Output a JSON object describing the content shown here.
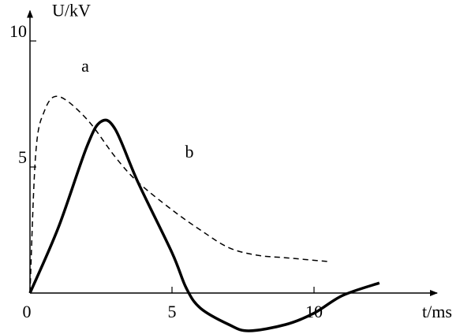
{
  "chart_data": {
    "type": "line",
    "x_label": "t/ms",
    "y_label": "U/kV",
    "annotations": [
      "a",
      "b"
    ],
    "xlim": [
      0,
      14
    ],
    "ylim": [
      -1.6,
      11.2
    ],
    "xticks": [
      0,
      5,
      10
    ],
    "yticks": [
      5,
      10
    ],
    "series": [
      {
        "name": "a",
        "color": "#000",
        "dashed": true,
        "x": [
          0,
          0.2,
          0.5,
          1,
          2,
          3,
          3.8,
          5,
          6,
          7,
          8,
          9,
          10.5
        ],
        "values": [
          0,
          5.5,
          7.2,
          7.8,
          6.9,
          5.4,
          4.4,
          3.3,
          2.5,
          1.8,
          1.5,
          1.4,
          1.25
        ]
      },
      {
        "name": "b",
        "color": "#000",
        "dashed": false,
        "x": [
          0,
          1,
          2,
          2.5,
          3,
          3.8,
          5,
          5.5,
          6,
          7,
          7.7,
          9,
          10,
          11,
          12.3
        ],
        "values": [
          0,
          2.6,
          5.8,
          6.8,
          6.5,
          4.4,
          1.6,
          0.2,
          -0.6,
          -1.25,
          -1.5,
          -1.25,
          -0.8,
          -0.1,
          0.4
        ]
      }
    ]
  }
}
